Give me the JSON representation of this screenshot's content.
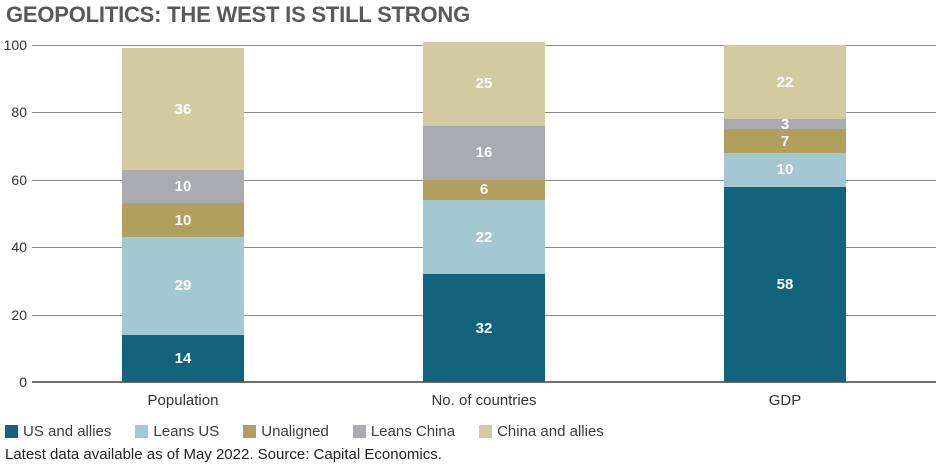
{
  "title": "GEOPOLITICS: THE WEST IS STILL STRONG",
  "footer": "Latest data available as of May 2022. Source: Capital Economics.",
  "chart_data": {
    "type": "bar",
    "stacked": true,
    "title": "GEOPOLITICS: THE WEST IS STILL STRONG",
    "categories": [
      "Population",
      "No. of countries",
      "GDP"
    ],
    "series": [
      {
        "name": "US and allies",
        "color": "#11647c",
        "values": [
          14,
          32,
          58
        ]
      },
      {
        "name": "Leans US",
        "color": "#a3c8d1",
        "values": [
          29,
          22,
          10
        ]
      },
      {
        "name": "Unaligned",
        "color": "#b19f5e",
        "values": [
          10,
          6,
          7
        ]
      },
      {
        "name": "Leans China",
        "color": "#a9abae",
        "values": [
          10,
          16,
          3
        ]
      },
      {
        "name": "China and allies",
        "color": "#d4caa2",
        "values": [
          36,
          25,
          22
        ]
      }
    ],
    "xlabel": "",
    "ylabel": "",
    "ylim": [
      0,
      100
    ],
    "yticks": [
      0,
      20,
      40,
      60,
      80,
      100
    ],
    "grid": true,
    "value_labels": true,
    "value_label_color": "#ffffff",
    "legend_position": "bottom",
    "source_note": "Latest data available as of May 2022. Source: Capital Economics."
  }
}
